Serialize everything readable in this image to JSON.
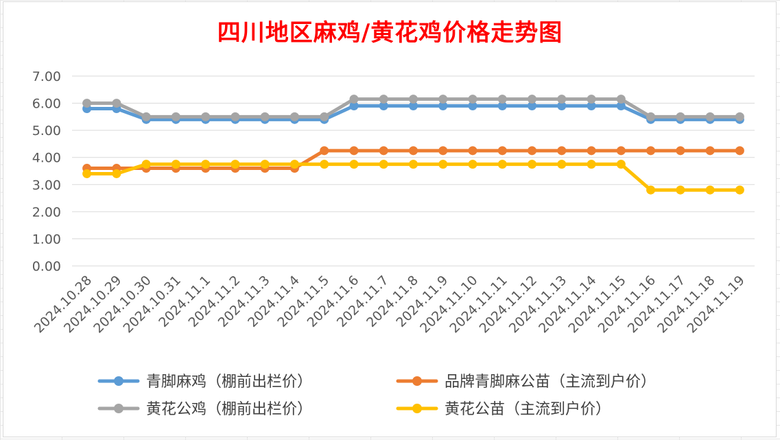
{
  "chart_data": {
    "type": "line",
    "title": "四川地区麻鸡/黄花鸡价格走势图",
    "xlabel": "",
    "ylabel": "",
    "ylim": [
      0,
      7
    ],
    "yticks": [
      "0.00",
      "1.00",
      "2.00",
      "3.00",
      "4.00",
      "5.00",
      "6.00",
      "7.00"
    ],
    "grid": true,
    "legend_position": "bottom",
    "categories": [
      "2024.10.28",
      "2024.10.29",
      "2024.10.30",
      "2024.10.31",
      "2024.11.1",
      "2024.11.2",
      "2024.11.3",
      "2024.11.4",
      "2024.11.5",
      "2024.11.6",
      "2024.11.7",
      "2024.11.8",
      "2024.11.9",
      "2024.11.10",
      "2024.11.11",
      "2024.11.12",
      "2024.11.13",
      "2024.11.14",
      "2024.11.15",
      "2024.11.16",
      "2024.11.17",
      "2024.11.18",
      "2024.11.19"
    ],
    "series": [
      {
        "name": "青脚麻鸡（棚前出栏价）",
        "color": "#5b9bd5",
        "values": [
          5.8,
          5.8,
          5.4,
          5.4,
          5.4,
          5.4,
          5.4,
          5.4,
          5.4,
          5.9,
          5.9,
          5.9,
          5.9,
          5.9,
          5.9,
          5.9,
          5.9,
          5.9,
          5.9,
          5.4,
          5.4,
          5.4,
          5.4
        ]
      },
      {
        "name": "品牌青脚麻公苗（主流到户价）",
        "color": "#ed7d31",
        "values": [
          3.6,
          3.6,
          3.6,
          3.6,
          3.6,
          3.6,
          3.6,
          3.6,
          4.25,
          4.25,
          4.25,
          4.25,
          4.25,
          4.25,
          4.25,
          4.25,
          4.25,
          4.25,
          4.25,
          4.25,
          4.25,
          4.25,
          4.25
        ]
      },
      {
        "name": "黄花公鸡（棚前出栏价）",
        "color": "#a5a5a5",
        "values": [
          6.0,
          6.0,
          5.5,
          5.5,
          5.5,
          5.5,
          5.5,
          5.5,
          5.5,
          6.15,
          6.15,
          6.15,
          6.15,
          6.15,
          6.15,
          6.15,
          6.15,
          6.15,
          6.15,
          5.5,
          5.5,
          5.5,
          5.5
        ]
      },
      {
        "name": "黄花公苗（主流到户价）",
        "color": "#ffc000",
        "values": [
          3.4,
          3.4,
          3.75,
          3.75,
          3.75,
          3.75,
          3.75,
          3.75,
          3.75,
          3.75,
          3.75,
          3.75,
          3.75,
          3.75,
          3.75,
          3.75,
          3.75,
          3.75,
          3.75,
          2.8,
          2.8,
          2.8,
          2.8
        ]
      }
    ]
  }
}
